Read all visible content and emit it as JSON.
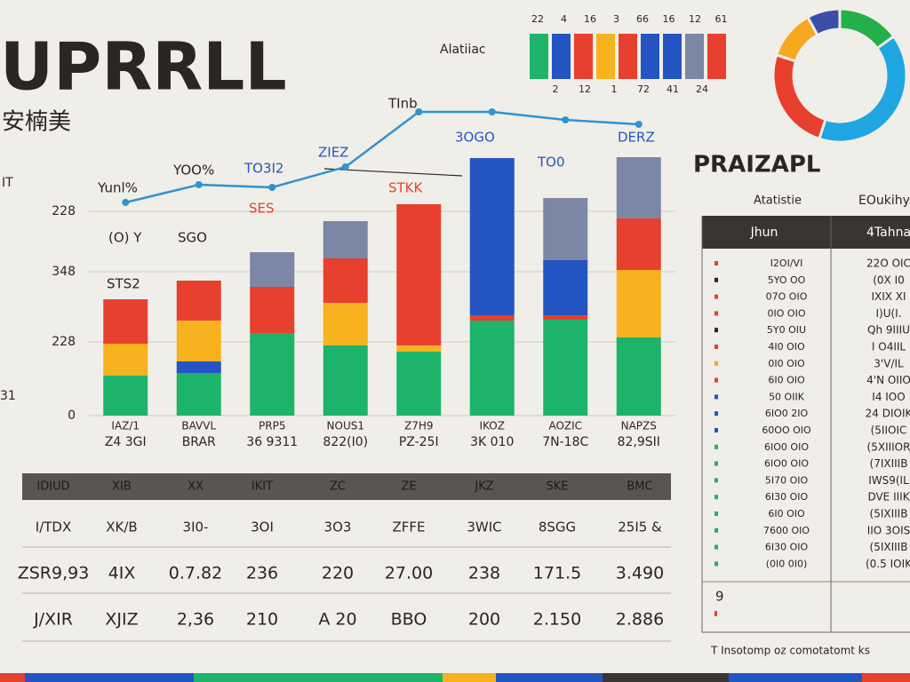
{
  "header": {
    "title": "UPRRLL",
    "subtitle": "安楠美"
  },
  "swatches": {
    "label": "Alatiiac",
    "colors": [
      "#1db36b",
      "#2455c3",
      "#e8402e",
      "#f6b21f",
      "#e8402e",
      "#2455c3",
      "#2455c3",
      "#7c87a6",
      "#e8402e"
    ],
    "top": [
      "22",
      "4",
      "16",
      "3",
      "66",
      "16",
      "12",
      "61"
    ],
    "bottom": [
      "2",
      "12",
      "1",
      "72",
      "41",
      "24"
    ]
  },
  "chart_data": [
    {
      "type": "bar",
      "categories": [
        "IAZ/1",
        "BAVVL",
        "PRP5",
        "NOUS1",
        "Z7H9",
        "IKOZ",
        "AOZIC",
        "NAPZS"
      ],
      "x_sublabels": [
        "Z4 3GI",
        "BRAR",
        "36 9311",
        "822(I0)",
        "PZ-25I",
        "3K 010",
        "7N-18C",
        "82,9SII"
      ],
      "ylim": [
        0,
        360
      ],
      "yticks": [
        0,
        {
          "value": 83,
          "label": "228"
        },
        {
          "value": 162,
          "label": "348"
        },
        {
          "value": 230,
          "label": "228"
        }
      ],
      "grid": true,
      "side_labels": [
        "IT",
        "31"
      ],
      "series": [
        {
          "color": "#1db36b",
          "values": [
            45,
            48,
            93,
            79,
            72,
            107,
            108,
            88
          ]
        },
        {
          "color": "#2455c3",
          "values": [
            null,
            13,
            null,
            null,
            null,
            null,
            null,
            null
          ]
        },
        {
          "color": "#f6b21f",
          "values": [
            36,
            46,
            null,
            48,
            7,
            null,
            null,
            76
          ]
        },
        {
          "color": "#e8402e",
          "values": [
            50,
            45,
            52,
            50,
            159,
            6,
            5,
            58
          ]
        },
        {
          "color": "#2455c3",
          "values": [
            null,
            null,
            null,
            null,
            null,
            177,
            62,
            null
          ]
        },
        {
          "color": "#7c87a6",
          "values": [
            null,
            null,
            39,
            42,
            null,
            null,
            70,
            69
          ]
        }
      ],
      "line": {
        "color": "#2f93d1",
        "values": [
          240,
          260,
          257,
          280,
          342,
          342,
          333,
          328
        ]
      },
      "annotations": [
        "Yunl%",
        "YOO%",
        "TO3I2",
        "ZIEZ",
        "TInb",
        "3OGO",
        "DERZ",
        "TO0",
        "SES",
        "STKK",
        "(O) Y",
        "SGO",
        "STS2"
      ]
    },
    {
      "type": "pie",
      "values": [
        15,
        40,
        25,
        12,
        8
      ],
      "colors": [
        "#23b04a",
        "#1fa6e0",
        "#e8402e",
        "#f6a81f",
        "#3c4fa8"
      ]
    }
  ],
  "table": {
    "header": [
      "IDIUD",
      "XIB",
      "XX",
      "IKIT",
      "ZC",
      "ZE",
      "JKZ",
      "SKE",
      "BMC"
    ],
    "rows": [
      [
        "I/TDX",
        "XK/B",
        "3I0-",
        "3OI",
        "3O3",
        "ZFFE",
        "3WIC",
        "8SGG",
        "25I5 &"
      ],
      [
        "ZSR9,93",
        "4IX",
        "0.7.82",
        "236",
        "220",
        "27.00",
        "238",
        "171.5",
        "3.490"
      ],
      [
        "J/XIR",
        "XJIZ",
        "2,36",
        "210",
        "A 20",
        "BBO",
        "200",
        "2.150",
        "2.886"
      ]
    ]
  },
  "side_table": {
    "title": "PRAIZAPL",
    "column_titles": [
      "Atatistie",
      "EOukihy"
    ],
    "header": [
      "Jhun",
      "4Tahna"
    ],
    "marker_colors": [
      "#e8402e",
      "#2a2624",
      "#e8402e",
      "#e8402e",
      "#2a2624",
      "#e8402e",
      "#f6a81f",
      "#e8402e",
      "#2455c3",
      "#2455c3",
      "#2455c3",
      "#1db36b",
      "#1db36b",
      "#1db36b",
      "#1db36b",
      "#1db36b",
      "#1db36b",
      "#1db36b",
      "#1db36b"
    ],
    "rows": [
      [
        "I2OI/VI",
        "22O OIC"
      ],
      [
        "5YO OO",
        "(0X I0"
      ],
      [
        "07O OIO",
        "IXIX XI"
      ],
      [
        "0IO OIO",
        "I)U(I."
      ],
      [
        "5Y0 OIU",
        "Qh 9IIIU"
      ],
      [
        "4I0 OIO",
        "I O4IIL"
      ],
      [
        "0I0 OIO",
        "3'V/IL"
      ],
      [
        "6I0 OIO",
        "4'N OIIO"
      ],
      [
        "50 OIIK",
        "I4 IOO"
      ],
      [
        "6IO0 2IO",
        "24 DIOIK"
      ],
      [
        "60OO OIO",
        "(5IIOIC"
      ],
      [
        "6IO0 OIO",
        "(5XIIIOR"
      ],
      [
        "6IO0 OIO",
        "(7IXIIIB"
      ],
      [
        "5I70 OIO",
        "IWS9(IL"
      ],
      [
        "6I30 OIO",
        "DVE IIIK"
      ],
      [
        "6I0 OIO",
        "(5IXIIIB"
      ],
      [
        "7600 OIO",
        "IIO 3OIS"
      ],
      [
        "6I30 OIO",
        "(5IXIIIB"
      ],
      [
        "(0I0 0I0)",
        "(0.5 IOIK"
      ]
    ],
    "extra": "9",
    "footer": "T  Insotomp oz comotatomt ks"
  }
}
